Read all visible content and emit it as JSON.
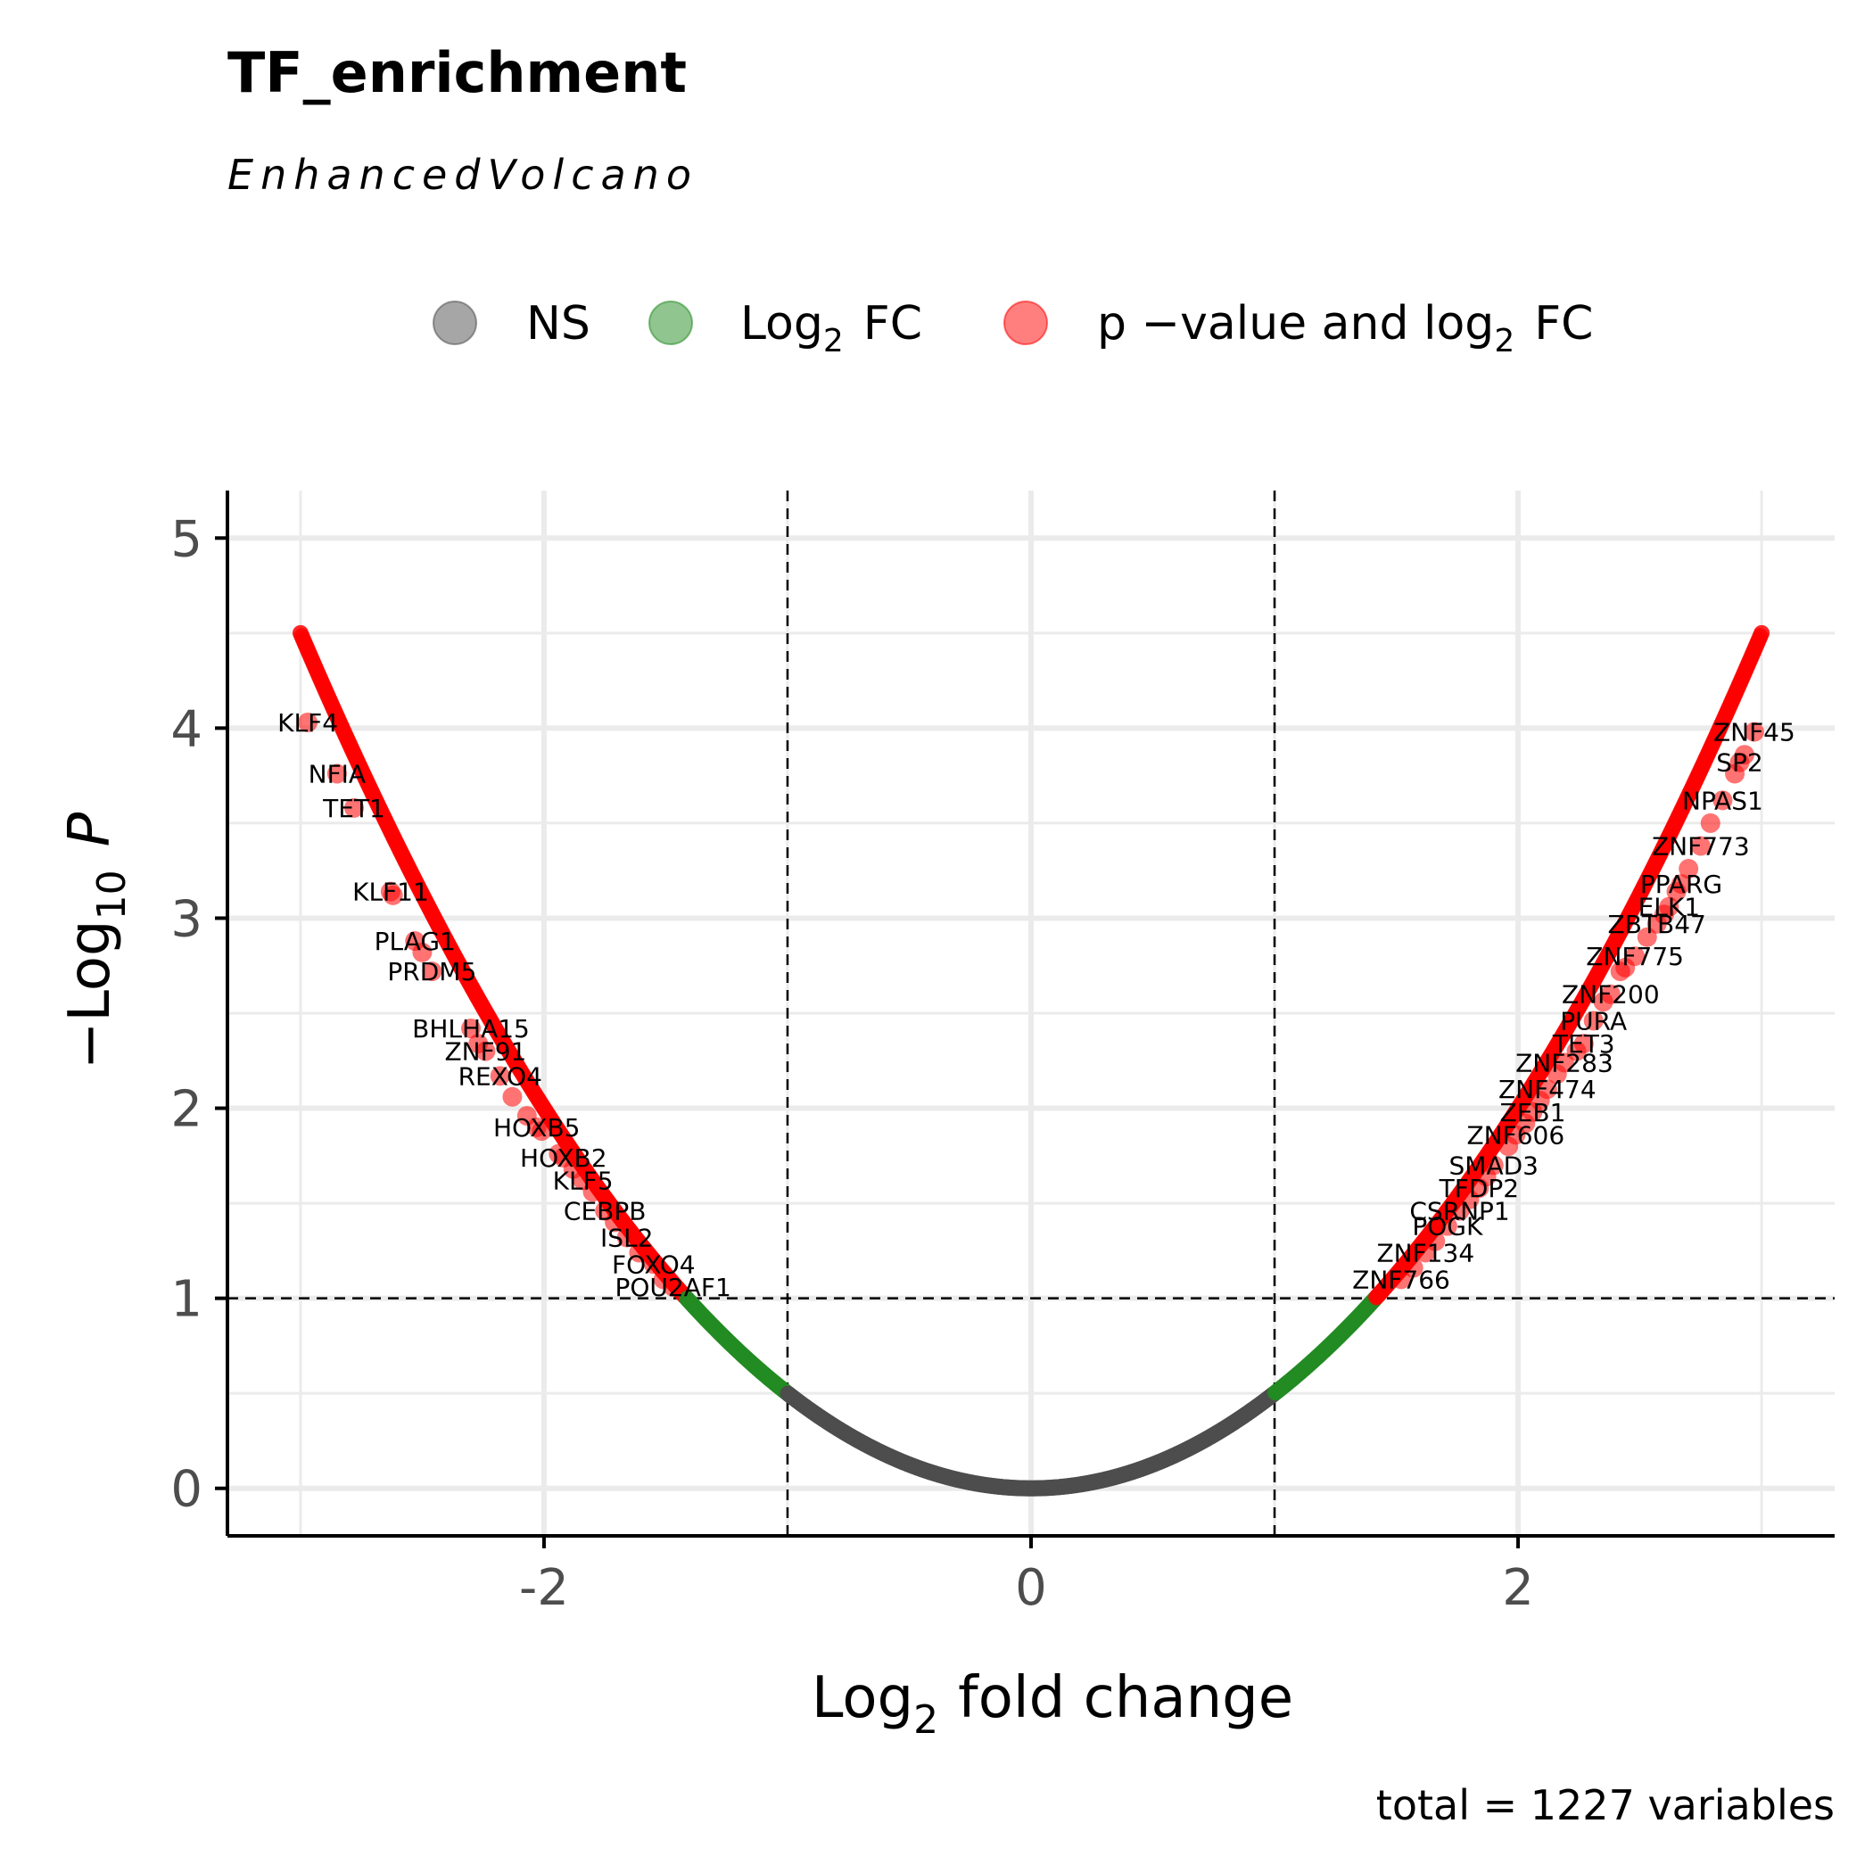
{
  "chart_data": {
    "type": "scatter",
    "title": "TF_enrichment",
    "subtitle": "EnhancedVolcano",
    "caption": "total = 1227 variables",
    "xlabel": {
      "main": "Log",
      "sub": "2",
      "rest": "fold change"
    },
    "ylabel": {
      "prefix": "−Log",
      "sub": "10",
      "italic": "P"
    },
    "xlim": [
      -3.3,
      3.3
    ],
    "ylim": [
      -0.25,
      5.25
    ],
    "x_ticks": [
      -2,
      0,
      2
    ],
    "x_tick_labels": [
      "-2",
      "0",
      "2"
    ],
    "y_ticks": [
      0,
      1,
      2,
      3,
      4,
      5
    ],
    "y_tick_labels": [
      "0",
      "1",
      "2",
      "3",
      "4",
      "5"
    ],
    "grid": true,
    "legend_position": "top",
    "fc_cutoff": 1,
    "p_cutoff_log10": 1,
    "curve_model": "y = 0.5 * x^2",
    "legend": [
      {
        "key": "ns",
        "label": "NS",
        "sub": "",
        "rest": "",
        "color": "#4d4d4d"
      },
      {
        "key": "fc",
        "label": "Log",
        "sub": "2",
        "rest": "FC",
        "color": "#228B22"
      },
      {
        "key": "both",
        "label": "p −value  and  log",
        "sub": "2",
        "rest": "FC",
        "color": "#ff0000"
      }
    ],
    "colors": {
      "ns": "#4d4d4d",
      "fc": "#228B22",
      "both": "#ff0000"
    },
    "labeled_points": [
      {
        "gene": "KLF4",
        "x": -2.97,
        "y": 4.03
      },
      {
        "gene": "NFIA",
        "x": -2.85,
        "y": 3.76
      },
      {
        "gene": "TET1",
        "x": -2.78,
        "y": 3.58
      },
      {
        "gene": "KLF11",
        "x": -2.63,
        "y": 3.14
      },
      {
        "gene": "PLAG1",
        "x": -2.53,
        "y": 2.88
      },
      {
        "gene": "PRDM5",
        "x": -2.46,
        "y": 2.72
      },
      {
        "gene": "BHLHA15",
        "x": -2.3,
        "y": 2.42
      },
      {
        "gene": "ZNF91",
        "x": -2.24,
        "y": 2.3
      },
      {
        "gene": "REXO4",
        "x": -2.18,
        "y": 2.17
      },
      {
        "gene": "HOXB5",
        "x": -2.03,
        "y": 1.9
      },
      {
        "gene": "HOXB2",
        "x": -1.92,
        "y": 1.74
      },
      {
        "gene": "KLF5",
        "x": -1.84,
        "y": 1.62
      },
      {
        "gene": "CEBPB",
        "x": -1.75,
        "y": 1.46
      },
      {
        "gene": "ISL2",
        "x": -1.66,
        "y": 1.32
      },
      {
        "gene": "FOXO4",
        "x": -1.55,
        "y": 1.18
      },
      {
        "gene": "POU2AF1",
        "x": -1.47,
        "y": 1.06
      },
      {
        "gene": "ZNF45",
        "x": 2.97,
        "y": 3.98
      },
      {
        "gene": "SP2",
        "x": 2.91,
        "y": 3.82
      },
      {
        "gene": "NPAS1",
        "x": 2.84,
        "y": 3.62
      },
      {
        "gene": "ZNF773",
        "x": 2.75,
        "y": 3.38
      },
      {
        "gene": "PPARG",
        "x": 2.67,
        "y": 3.18
      },
      {
        "gene": "ELK1",
        "x": 2.62,
        "y": 3.06
      },
      {
        "gene": "ZBTB47",
        "x": 2.57,
        "y": 2.97
      },
      {
        "gene": "ZNF775",
        "x": 2.48,
        "y": 2.8
      },
      {
        "gene": "ZNF200",
        "x": 2.38,
        "y": 2.6
      },
      {
        "gene": "PURA",
        "x": 2.31,
        "y": 2.46
      },
      {
        "gene": "TET3",
        "x": 2.27,
        "y": 2.34
      },
      {
        "gene": "ZNF283",
        "x": 2.19,
        "y": 2.24
      },
      {
        "gene": "ZNF474",
        "x": 2.12,
        "y": 2.1
      },
      {
        "gene": "ZEB1",
        "x": 2.06,
        "y": 1.98
      },
      {
        "gene": "ZNF606",
        "x": 1.99,
        "y": 1.86
      },
      {
        "gene": "SMAD3",
        "x": 1.9,
        "y": 1.7
      },
      {
        "gene": "TFDP2",
        "x": 1.84,
        "y": 1.58
      },
      {
        "gene": "CSRNP1",
        "x": 1.76,
        "y": 1.46
      },
      {
        "gene": "POGK",
        "x": 1.71,
        "y": 1.38
      },
      {
        "gene": "ZNF134",
        "x": 1.62,
        "y": 1.24
      },
      {
        "gene": "ZNF766",
        "x": 1.52,
        "y": 1.1
      }
    ],
    "unlabeled_points": [
      {
        "x": -2.62,
        "y": 3.12
      },
      {
        "x": -2.5,
        "y": 2.82
      },
      {
        "x": -2.27,
        "y": 2.34
      },
      {
        "x": -2.13,
        "y": 2.06
      },
      {
        "x": -2.07,
        "y": 1.96
      },
      {
        "x": -2.01,
        "y": 1.88
      },
      {
        "x": -1.94,
        "y": 1.76
      },
      {
        "x": -1.88,
        "y": 1.68
      },
      {
        "x": -1.8,
        "y": 1.56
      },
      {
        "x": -1.71,
        "y": 1.4
      },
      {
        "x": -1.61,
        "y": 1.24
      },
      {
        "x": -1.51,
        "y": 1.1
      },
      {
        "x": 2.93,
        "y": 3.86
      },
      {
        "x": 2.89,
        "y": 3.76
      },
      {
        "x": 2.79,
        "y": 3.5
      },
      {
        "x": 2.7,
        "y": 3.26
      },
      {
        "x": 2.65,
        "y": 3.14
      },
      {
        "x": 2.6,
        "y": 3.02
      },
      {
        "x": 2.53,
        "y": 2.9
      },
      {
        "x": 2.44,
        "y": 2.74
      },
      {
        "x": 2.42,
        "y": 2.72
      },
      {
        "x": 2.35,
        "y": 2.56
      },
      {
        "x": 2.24,
        "y": 2.3
      },
      {
        "x": 2.16,
        "y": 2.18
      },
      {
        "x": 2.09,
        "y": 2.04
      },
      {
        "x": 2.03,
        "y": 1.92
      },
      {
        "x": 1.96,
        "y": 1.8
      },
      {
        "x": 1.87,
        "y": 1.64
      },
      {
        "x": 1.8,
        "y": 1.52
      },
      {
        "x": 1.66,
        "y": 1.3
      },
      {
        "x": 1.57,
        "y": 1.16
      }
    ]
  }
}
